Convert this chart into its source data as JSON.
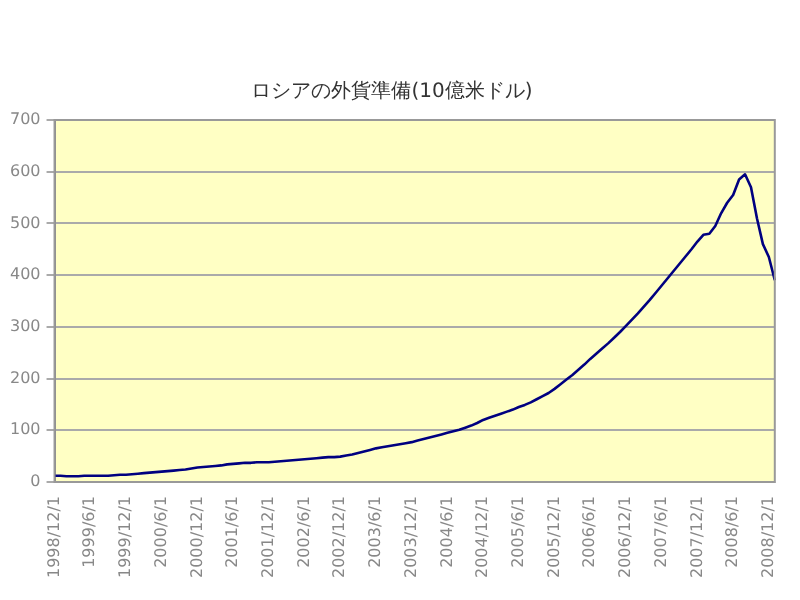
{
  "chart_data": {
    "type": "line",
    "title": [
      "ロシアの外貨準備(10億米ドル)"
    ],
    "categories": [
      "1998/12/1",
      null,
      null,
      null,
      null,
      null,
      "1999/6/1",
      null,
      null,
      null,
      null,
      null,
      "1999/12/1",
      null,
      null,
      null,
      null,
      null,
      "2000/6/1",
      null,
      null,
      null,
      null,
      null,
      "2000/12/1",
      null,
      null,
      null,
      null,
      null,
      "2001/6/1",
      null,
      null,
      null,
      null,
      null,
      "2001/12/1",
      null,
      null,
      null,
      null,
      null,
      "2002/6/1",
      null,
      null,
      null,
      null,
      null,
      "2002/12/1",
      null,
      null,
      null,
      null,
      null,
      "2003/6/1",
      null,
      null,
      null,
      null,
      null,
      "2003/12/1",
      null,
      null,
      null,
      null,
      null,
      "2004/6/1",
      null,
      null,
      null,
      null,
      null,
      "2004/12/1",
      null,
      null,
      null,
      null,
      null,
      "2005/6/1",
      null,
      null,
      null,
      null,
      null,
      "2005/12/1",
      null,
      null,
      null,
      null,
      null,
      "2006/6/1",
      null,
      null,
      null,
      null,
      null,
      "2006/12/1",
      null,
      null,
      null,
      null,
      null,
      "2007/6/1",
      null,
      null,
      null,
      null,
      null,
      "2007/12/1",
      null,
      null,
      null,
      null,
      null,
      "2008/6/1",
      null,
      null,
      null,
      null,
      null,
      "2008/12/1",
      null
    ],
    "series": [
      {
        "color": "#000080",
        "values": [
          12,
          12,
          11,
          11,
          11,
          12,
          12,
          12,
          12,
          12,
          13,
          14,
          14,
          15,
          16,
          17,
          18,
          19,
          20,
          21,
          22,
          23,
          24,
          26,
          28,
          29,
          30,
          31,
          32,
          34,
          35,
          36,
          37,
          37,
          38,
          38,
          38,
          39,
          40,
          41,
          42,
          43,
          44,
          45,
          46,
          47,
          48,
          48,
          49,
          51,
          53,
          56,
          59,
          62,
          65,
          67,
          69,
          71,
          73,
          75,
          77,
          80,
          83,
          86,
          89,
          92,
          95,
          98,
          101,
          105,
          109,
          114,
          120,
          124,
          128,
          132,
          136,
          140,
          145,
          149,
          154,
          160,
          166,
          172,
          180,
          189,
          198,
          207,
          217,
          227,
          238,
          248,
          258,
          268,
          279,
          290,
          302,
          314,
          326,
          339,
          352,
          366,
          380,
          394,
          408,
          422,
          436,
          450,
          465,
          478,
          480,
          495,
          520,
          540,
          555,
          585,
          595,
          570,
          510,
          460,
          435,
          390
        ]
      }
    ],
    "ylim": [
      0,
      700
    ],
    "yticks": [
      0,
      100,
      200,
      300,
      400,
      500,
      600,
      700
    ],
    "grid": "y",
    "legend": false,
    "marker": "none",
    "line_style": "solid"
  }
}
